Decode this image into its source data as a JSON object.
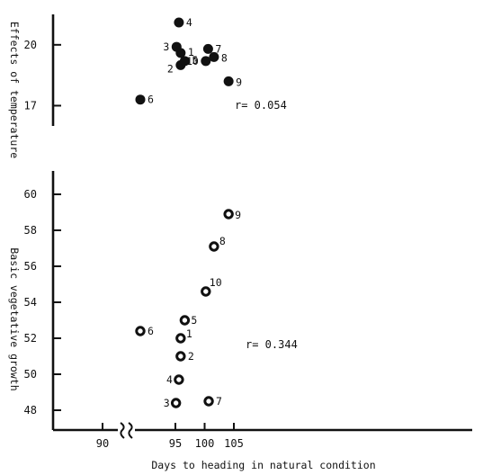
{
  "chart_data": [
    {
      "type": "scatter",
      "panel": "top",
      "ylabel": "Effects of temperature",
      "xlabel": "Days to heading in natural condition",
      "ylim": [
        16,
        21.5
      ],
      "yticks": [
        17,
        20
      ],
      "annotation": "r= 0.054",
      "marker": "filled-circle",
      "points": [
        {
          "label": "1",
          "x": 95.9,
          "y": 19.6
        },
        {
          "label": "2",
          "x": 95.9,
          "y": 19.0
        },
        {
          "label": "3",
          "x": 95.2,
          "y": 19.9
        },
        {
          "label": "4",
          "x": 95.6,
          "y": 21.1
        },
        {
          "label": "5",
          "x": 96.6,
          "y": 19.2
        },
        {
          "label": "6",
          "x": 89.0,
          "y": 17.3
        },
        {
          "label": "7",
          "x": 100.6,
          "y": 19.8
        },
        {
          "label": "8",
          "x": 101.6,
          "y": 19.4
        },
        {
          "label": "9",
          "x": 104.1,
          "y": 18.2
        },
        {
          "label": "10",
          "x": 100.2,
          "y": 19.2
        }
      ]
    },
    {
      "type": "scatter",
      "panel": "bottom",
      "ylabel": "Basic vegetative growth",
      "xlabel": "Days to heading in natural condition",
      "ylim": [
        46.9,
        61.3
      ],
      "yticks": [
        48,
        50,
        52,
        54,
        56,
        58,
        60
      ],
      "annotation": "r= 0.344",
      "marker": "open-circle",
      "points": [
        {
          "label": "1",
          "x": 95.9,
          "y": 52.0
        },
        {
          "label": "2",
          "x": 95.9,
          "y": 51.0
        },
        {
          "label": "3",
          "x": 95.1,
          "y": 48.4
        },
        {
          "label": "4",
          "x": 95.6,
          "y": 49.7
        },
        {
          "label": "5",
          "x": 96.6,
          "y": 53.0
        },
        {
          "label": "6",
          "x": 89.0,
          "y": 52.4
        },
        {
          "label": "7",
          "x": 100.7,
          "y": 48.5
        },
        {
          "label": "8",
          "x": 101.6,
          "y": 57.1
        },
        {
          "label": "9",
          "x": 104.1,
          "y": 58.9
        },
        {
          "label": "10",
          "x": 100.2,
          "y": 54.6
        }
      ]
    }
  ],
  "x_axis": {
    "title": "Days to heading in natural condition",
    "tick_labels": [
      "90",
      "95",
      "100",
      "105"
    ],
    "break_symbol": "≈",
    "break_between": [
      90,
      95
    ]
  }
}
